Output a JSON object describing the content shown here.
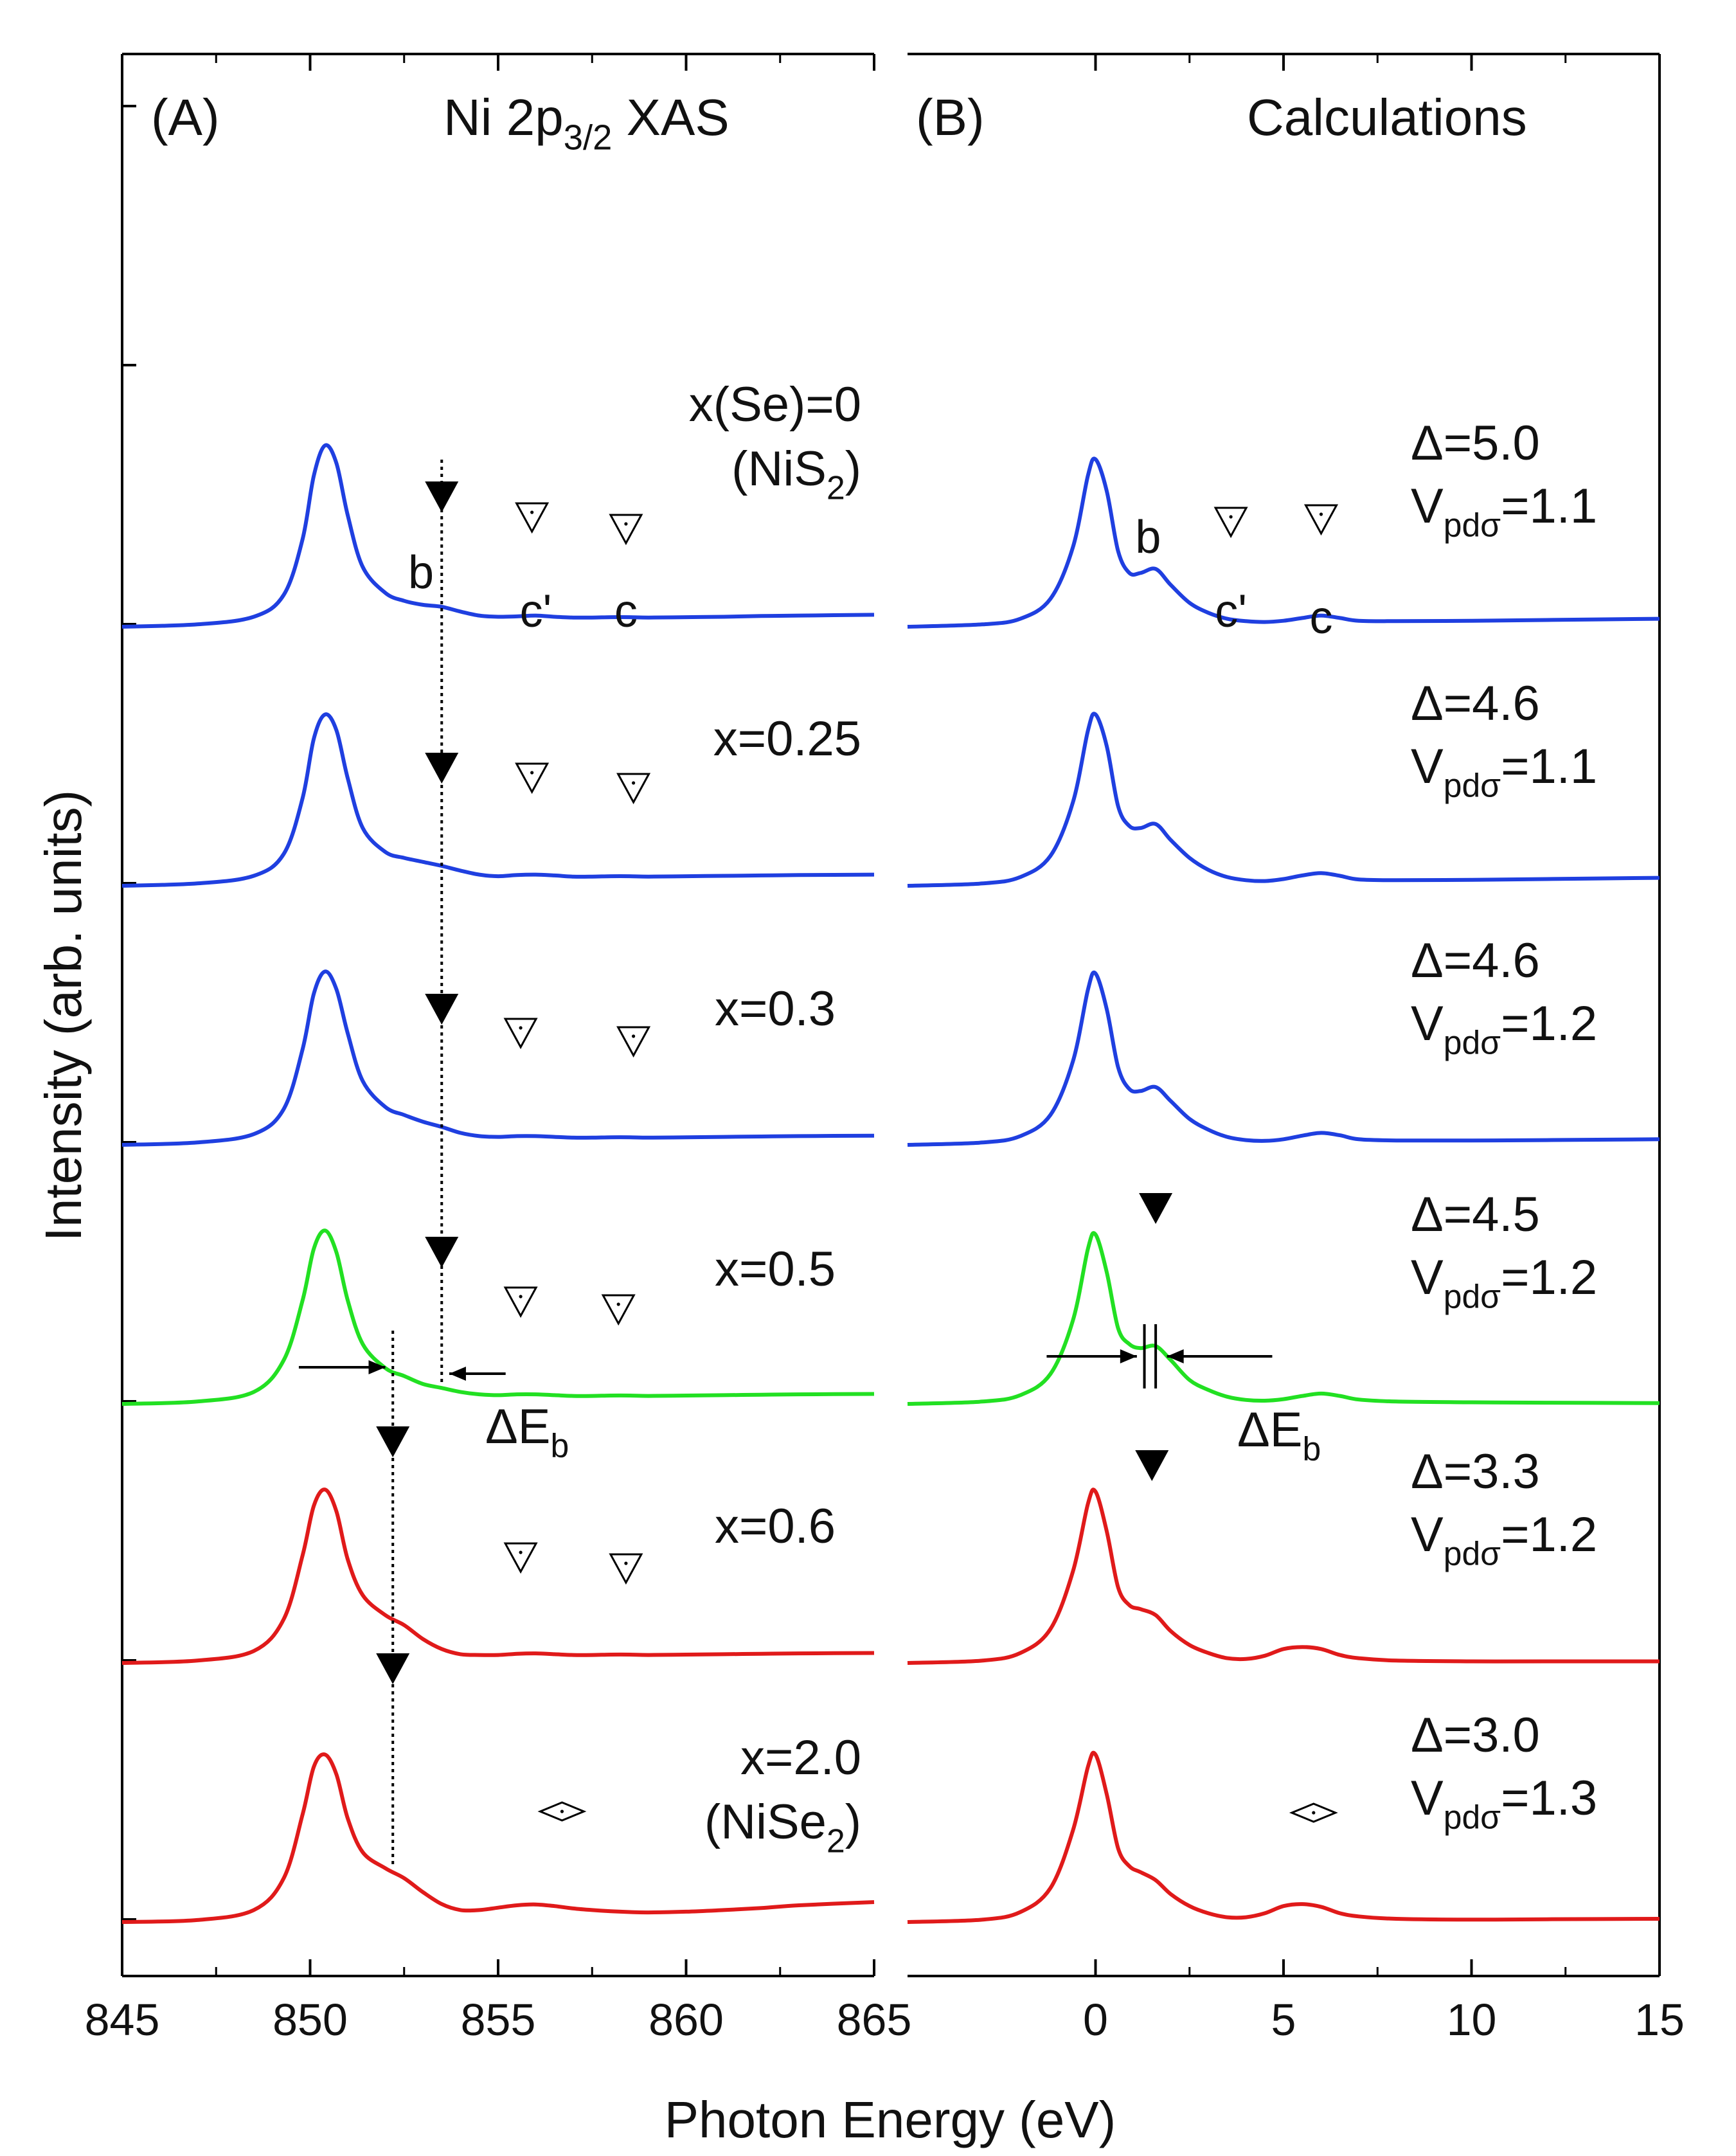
{
  "chart_data": [
    {
      "type": "line",
      "panel_label": "(A)",
      "title": "Ni 2p3/2 XAS",
      "title_parts": {
        "main": "Ni 2p",
        "sub": "3/2",
        "tail": " XAS"
      },
      "xlabel": "Photon Energy (eV)",
      "ylabel": "Intensity (arb. units)",
      "xlim": [
        845,
        865
      ],
      "xticks": [
        845,
        850,
        855,
        860,
        865
      ],
      "xtick_labels": [
        "845",
        "850",
        "855",
        "860",
        "865"
      ],
      "feature_labels": {
        "b": "b",
        "c_prime": "c'",
        "c": "c"
      },
      "delta_label": {
        "main": "ΔE",
        "sub": "b"
      },
      "series": [
        {
          "name": "x(Se)=0",
          "label": "x(Se)=0",
          "label2_parts": {
            "main": "(NiS",
            "sub": "2",
            "tail": ")"
          },
          "color": "#1f3fe0",
          "baseline": 0.0,
          "x": [
            845,
            847,
            848.5,
            849.3,
            849.8,
            850.1,
            850.4,
            850.7,
            851.0,
            851.4,
            852.0,
            852.5,
            853.0,
            853.5,
            854.0,
            854.5,
            855.0,
            855.5,
            856.0,
            856.5,
            857.0,
            857.5,
            858.0,
            858.5,
            859.0,
            860.0,
            861.0,
            862.0,
            863.0,
            865
          ],
          "y": [
            0,
            0.06,
            0.25,
            0.8,
            2.2,
            3.8,
            4.55,
            4.1,
            2.8,
            1.5,
            0.85,
            0.65,
            0.55,
            0.5,
            0.38,
            0.28,
            0.25,
            0.26,
            0.28,
            0.25,
            0.23,
            0.23,
            0.24,
            0.24,
            0.23,
            0.24,
            0.25,
            0.27,
            0.28,
            0.3
          ]
        },
        {
          "name": "x=0.25",
          "label": "x=0.25",
          "color": "#1f3fe0",
          "baseline": -1.0,
          "x": [
            845,
            847,
            848.5,
            849.3,
            849.8,
            850.1,
            850.4,
            850.7,
            851.0,
            851.4,
            852.0,
            852.5,
            853.0,
            853.5,
            854.0,
            854.5,
            855.0,
            855.5,
            856.0,
            856.5,
            857.0,
            857.5,
            858.0,
            858.5,
            859.0,
            860.0,
            861.0,
            862.0,
            863.0,
            865
          ],
          "y": [
            0,
            0.06,
            0.25,
            0.8,
            2.2,
            3.7,
            4.3,
            3.9,
            2.7,
            1.45,
            0.85,
            0.7,
            0.6,
            0.5,
            0.38,
            0.28,
            0.24,
            0.27,
            0.28,
            0.26,
            0.23,
            0.23,
            0.24,
            0.24,
            0.23,
            0.24,
            0.25,
            0.26,
            0.27,
            0.28
          ]
        },
        {
          "name": "x=0.3",
          "label": "x=0.3",
          "color": "#1f3fe0",
          "baseline": -2.0,
          "x": [
            845,
            847,
            848.5,
            849.3,
            849.8,
            850.1,
            850.4,
            850.7,
            851.0,
            851.4,
            852.0,
            852.5,
            853.0,
            853.5,
            854.0,
            854.5,
            855.0,
            855.5,
            856.0,
            856.5,
            857.0,
            857.5,
            858.0,
            858.5,
            859.0,
            860.0,
            861.0,
            862.0,
            863.0,
            865
          ],
          "y": [
            0,
            0.06,
            0.27,
            0.9,
            2.4,
            3.8,
            4.35,
            3.9,
            2.8,
            1.6,
            0.95,
            0.75,
            0.58,
            0.45,
            0.3,
            0.22,
            0.2,
            0.22,
            0.22,
            0.2,
            0.18,
            0.18,
            0.19,
            0.19,
            0.18,
            0.19,
            0.2,
            0.21,
            0.22,
            0.23
          ]
        },
        {
          "name": "x=0.5",
          "label": "x=0.5",
          "color": "#22e022",
          "baseline": -3.0,
          "x": [
            845,
            847,
            848.5,
            849.3,
            849.8,
            850.1,
            850.4,
            850.7,
            851.0,
            851.4,
            852.0,
            852.5,
            853.0,
            853.5,
            854.0,
            854.5,
            855.0,
            855.5,
            856.0,
            856.5,
            857.0,
            857.5,
            858.0,
            858.5,
            859.0,
            860.0,
            861.0,
            862.0,
            863.0,
            865
          ],
          "y": [
            0,
            0.06,
            0.3,
            1.1,
            2.6,
            3.9,
            4.35,
            3.8,
            2.6,
            1.5,
            0.9,
            0.7,
            0.5,
            0.4,
            0.3,
            0.24,
            0.22,
            0.24,
            0.24,
            0.22,
            0.2,
            0.2,
            0.21,
            0.21,
            0.2,
            0.21,
            0.22,
            0.23,
            0.24,
            0.25
          ]
        },
        {
          "name": "x=0.6",
          "label": "x=0.6",
          "color": "#e01a1a",
          "baseline": -4.0,
          "x": [
            845,
            847,
            848.5,
            849.3,
            849.8,
            850.1,
            850.4,
            850.7,
            851.0,
            851.4,
            852.0,
            852.5,
            853.0,
            853.5,
            854.0,
            854.5,
            855.0,
            855.5,
            856.0,
            856.5,
            857.0,
            857.5,
            858.0,
            858.5,
            859.0,
            860.0,
            861.0,
            862.0,
            863.0,
            865
          ],
          "y": [
            0,
            0.06,
            0.3,
            1.1,
            2.7,
            3.95,
            4.35,
            3.8,
            2.6,
            1.7,
            1.2,
            0.95,
            0.6,
            0.35,
            0.22,
            0.2,
            0.2,
            0.23,
            0.24,
            0.22,
            0.2,
            0.2,
            0.21,
            0.21,
            0.2,
            0.21,
            0.22,
            0.23,
            0.24,
            0.25
          ]
        },
        {
          "name": "x=2.0",
          "label": "x=2.0",
          "label2_parts": {
            "main": "(NiSe",
            "sub": "2",
            "tail": ")"
          },
          "color": "#e01a1a",
          "baseline": -5.0,
          "x": [
            845,
            847,
            848.5,
            849.3,
            849.8,
            850.1,
            850.4,
            850.7,
            851.0,
            851.4,
            852.0,
            852.5,
            853.0,
            853.5,
            854.0,
            854.5,
            855.0,
            855.5,
            856.0,
            856.5,
            857.0,
            857.5,
            858.0,
            858.5,
            859.0,
            860.0,
            861.0,
            862.0,
            863.0,
            865
          ],
          "y": [
            0,
            0.05,
            0.3,
            1.1,
            2.7,
            3.9,
            4.2,
            3.7,
            2.6,
            1.75,
            1.35,
            1.1,
            0.75,
            0.45,
            0.3,
            0.3,
            0.36,
            0.42,
            0.44,
            0.4,
            0.34,
            0.3,
            0.27,
            0.25,
            0.24,
            0.26,
            0.3,
            0.35,
            0.42,
            0.5
          ]
        }
      ]
    },
    {
      "type": "line",
      "panel_label": "(B)",
      "title": "Calculations",
      "xlim": [
        -5,
        15
      ],
      "xticks": [
        0,
        5,
        10,
        15
      ],
      "xtick_labels": [
        "0",
        "5",
        "10",
        "15"
      ],
      "feature_labels": {
        "b": "b",
        "c_prime": "c'",
        "c": "c"
      },
      "delta_label": {
        "main": "ΔE",
        "sub": "b"
      },
      "series": [
        {
          "name": "Δ=5.0 Vpdσ=1.1",
          "delta": "Δ=5.0",
          "vpd_parts": {
            "main": "V",
            "sub": "pdσ",
            "tail": "=1.1"
          },
          "color": "#1f3fe0",
          "baseline": 0.0,
          "x": [
            -5,
            -3,
            -2,
            -1.2,
            -0.6,
            -0.2,
            0.0,
            0.3,
            0.6,
            0.9,
            1.2,
            1.6,
            2.0,
            2.5,
            3.0,
            3.5,
            4.0,
            4.5,
            5.0,
            5.5,
            6.0,
            6.5,
            7.0,
            8.0,
            10.0,
            12.0,
            15.0
          ],
          "y": [
            0,
            0.06,
            0.2,
            0.7,
            2.0,
            3.8,
            4.2,
            3.4,
            1.9,
            1.35,
            1.35,
            1.45,
            1.05,
            0.6,
            0.35,
            0.2,
            0.14,
            0.12,
            0.15,
            0.22,
            0.28,
            0.22,
            0.15,
            0.14,
            0.15,
            0.17,
            0.2
          ]
        },
        {
          "name": "Δ=4.6 Vpdσ=1.1",
          "delta": "Δ=4.6",
          "vpd_parts": {
            "main": "V",
            "sub": "pdσ",
            "tail": "=1.1"
          },
          "color": "#1f3fe0",
          "baseline": -1.0,
          "x": [
            -5,
            -3,
            -2,
            -1.2,
            -0.6,
            -0.2,
            0.0,
            0.3,
            0.6,
            0.9,
            1.2,
            1.6,
            2.0,
            2.5,
            3.0,
            3.5,
            4.0,
            4.5,
            5.0,
            5.5,
            6.0,
            6.5,
            7.0,
            8.0,
            10.0,
            12.0,
            15.0
          ],
          "y": [
            0,
            0.06,
            0.22,
            0.75,
            2.1,
            3.9,
            4.3,
            3.5,
            2.0,
            1.5,
            1.45,
            1.55,
            1.15,
            0.7,
            0.4,
            0.22,
            0.14,
            0.12,
            0.17,
            0.26,
            0.32,
            0.25,
            0.16,
            0.14,
            0.15,
            0.17,
            0.2
          ]
        },
        {
          "name": "Δ=4.6 Vpdσ=1.2",
          "delta": "Δ=4.6",
          "vpd_parts": {
            "main": "V",
            "sub": "pdσ",
            "tail": "=1.2"
          },
          "color": "#1f3fe0",
          "baseline": -2.0,
          "x": [
            -5,
            -3,
            -2,
            -1.2,
            -0.6,
            -0.2,
            0.0,
            0.3,
            0.6,
            0.9,
            1.2,
            1.6,
            2.0,
            2.5,
            3.0,
            3.5,
            4.0,
            4.5,
            5.0,
            5.5,
            6.0,
            6.5,
            7.0,
            8.0,
            10.0,
            12.0,
            15.0
          ],
          "y": [
            0,
            0.06,
            0.22,
            0.75,
            2.1,
            3.9,
            4.3,
            3.4,
            1.95,
            1.4,
            1.35,
            1.45,
            1.1,
            0.65,
            0.38,
            0.2,
            0.12,
            0.1,
            0.14,
            0.23,
            0.3,
            0.24,
            0.14,
            0.11,
            0.11,
            0.12,
            0.14
          ]
        },
        {
          "name": "Δ=4.5 Vpdσ=1.2",
          "delta": "Δ=4.5",
          "vpd_parts": {
            "main": "V",
            "sub": "pdσ",
            "tail": "=1.2"
          },
          "color": "#22e022",
          "baseline": -3.0,
          "x": [
            -5,
            -3,
            -2,
            -1.2,
            -0.6,
            -0.2,
            0.0,
            0.3,
            0.6,
            0.9,
            1.2,
            1.6,
            2.0,
            2.5,
            3.0,
            3.5,
            4.0,
            4.5,
            5.0,
            5.5,
            6.0,
            6.5,
            7.0,
            8.0,
            10.0,
            12.0,
            15.0
          ],
          "y": [
            0,
            0.06,
            0.22,
            0.75,
            2.1,
            3.9,
            4.25,
            3.3,
            1.9,
            1.5,
            1.4,
            1.45,
            1.1,
            0.6,
            0.35,
            0.18,
            0.1,
            0.08,
            0.12,
            0.2,
            0.26,
            0.2,
            0.11,
            0.06,
            0.04,
            0.03,
            0.02
          ]
        },
        {
          "name": "Δ=3.3 Vpdσ=1.2",
          "delta": "Δ=3.3",
          "vpd_parts": {
            "main": "V",
            "sub": "pdσ",
            "tail": "=1.2"
          },
          "color": "#e01a1a",
          "baseline": -4.0,
          "x": [
            -5,
            -3,
            -2,
            -1.2,
            -0.6,
            -0.2,
            0.0,
            0.3,
            0.6,
            0.9,
            1.2,
            1.6,
            2.0,
            2.5,
            3.0,
            3.5,
            4.0,
            4.5,
            5.0,
            5.5,
            6.0,
            6.5,
            7.0,
            8.0,
            10.0,
            12.0,
            15.0
          ],
          "y": [
            0,
            0.06,
            0.25,
            0.85,
            2.3,
            4.0,
            4.3,
            3.3,
            1.9,
            1.45,
            1.35,
            1.2,
            0.8,
            0.45,
            0.25,
            0.12,
            0.1,
            0.18,
            0.35,
            0.4,
            0.35,
            0.2,
            0.12,
            0.06,
            0.04,
            0.04,
            0.04
          ]
        },
        {
          "name": "Δ=3.0 Vpdσ=1.3",
          "delta": "Δ=3.0",
          "vpd_parts": {
            "main": "V",
            "sub": "pdσ",
            "tail": "=1.3"
          },
          "color": "#e01a1a",
          "baseline": -5.0,
          "x": [
            -5,
            -3,
            -2,
            -1.2,
            -0.6,
            -0.2,
            0.0,
            0.3,
            0.6,
            0.9,
            1.2,
            1.6,
            2.0,
            2.5,
            3.0,
            3.5,
            4.0,
            4.5,
            5.0,
            5.5,
            6.0,
            6.5,
            7.0,
            8.0,
            10.0,
            12.0,
            15.0
          ],
          "y": [
            0,
            0.06,
            0.25,
            0.85,
            2.3,
            3.9,
            4.2,
            3.2,
            1.85,
            1.4,
            1.25,
            1.05,
            0.7,
            0.4,
            0.22,
            0.12,
            0.12,
            0.22,
            0.4,
            0.45,
            0.38,
            0.22,
            0.14,
            0.08,
            0.06,
            0.07,
            0.08
          ]
        }
      ]
    }
  ]
}
